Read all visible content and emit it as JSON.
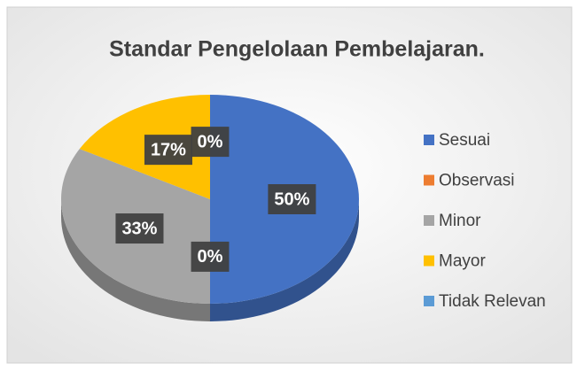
{
  "chart_data": {
    "type": "pie",
    "title": "Standar Pengelolaan Pembelajaran.",
    "categories": [
      "Sesuai",
      "Observasi",
      "Minor",
      "Mayor",
      "Tidak Relevan"
    ],
    "values": [
      50,
      0,
      33,
      17,
      0
    ],
    "value_labels": [
      "50%",
      "0%",
      "33%",
      "17%",
      "0%"
    ],
    "colors": [
      "#4472c4",
      "#ed7d31",
      "#a5a5a5",
      "#ffc000",
      "#5b9bd5"
    ],
    "legend": "right"
  }
}
